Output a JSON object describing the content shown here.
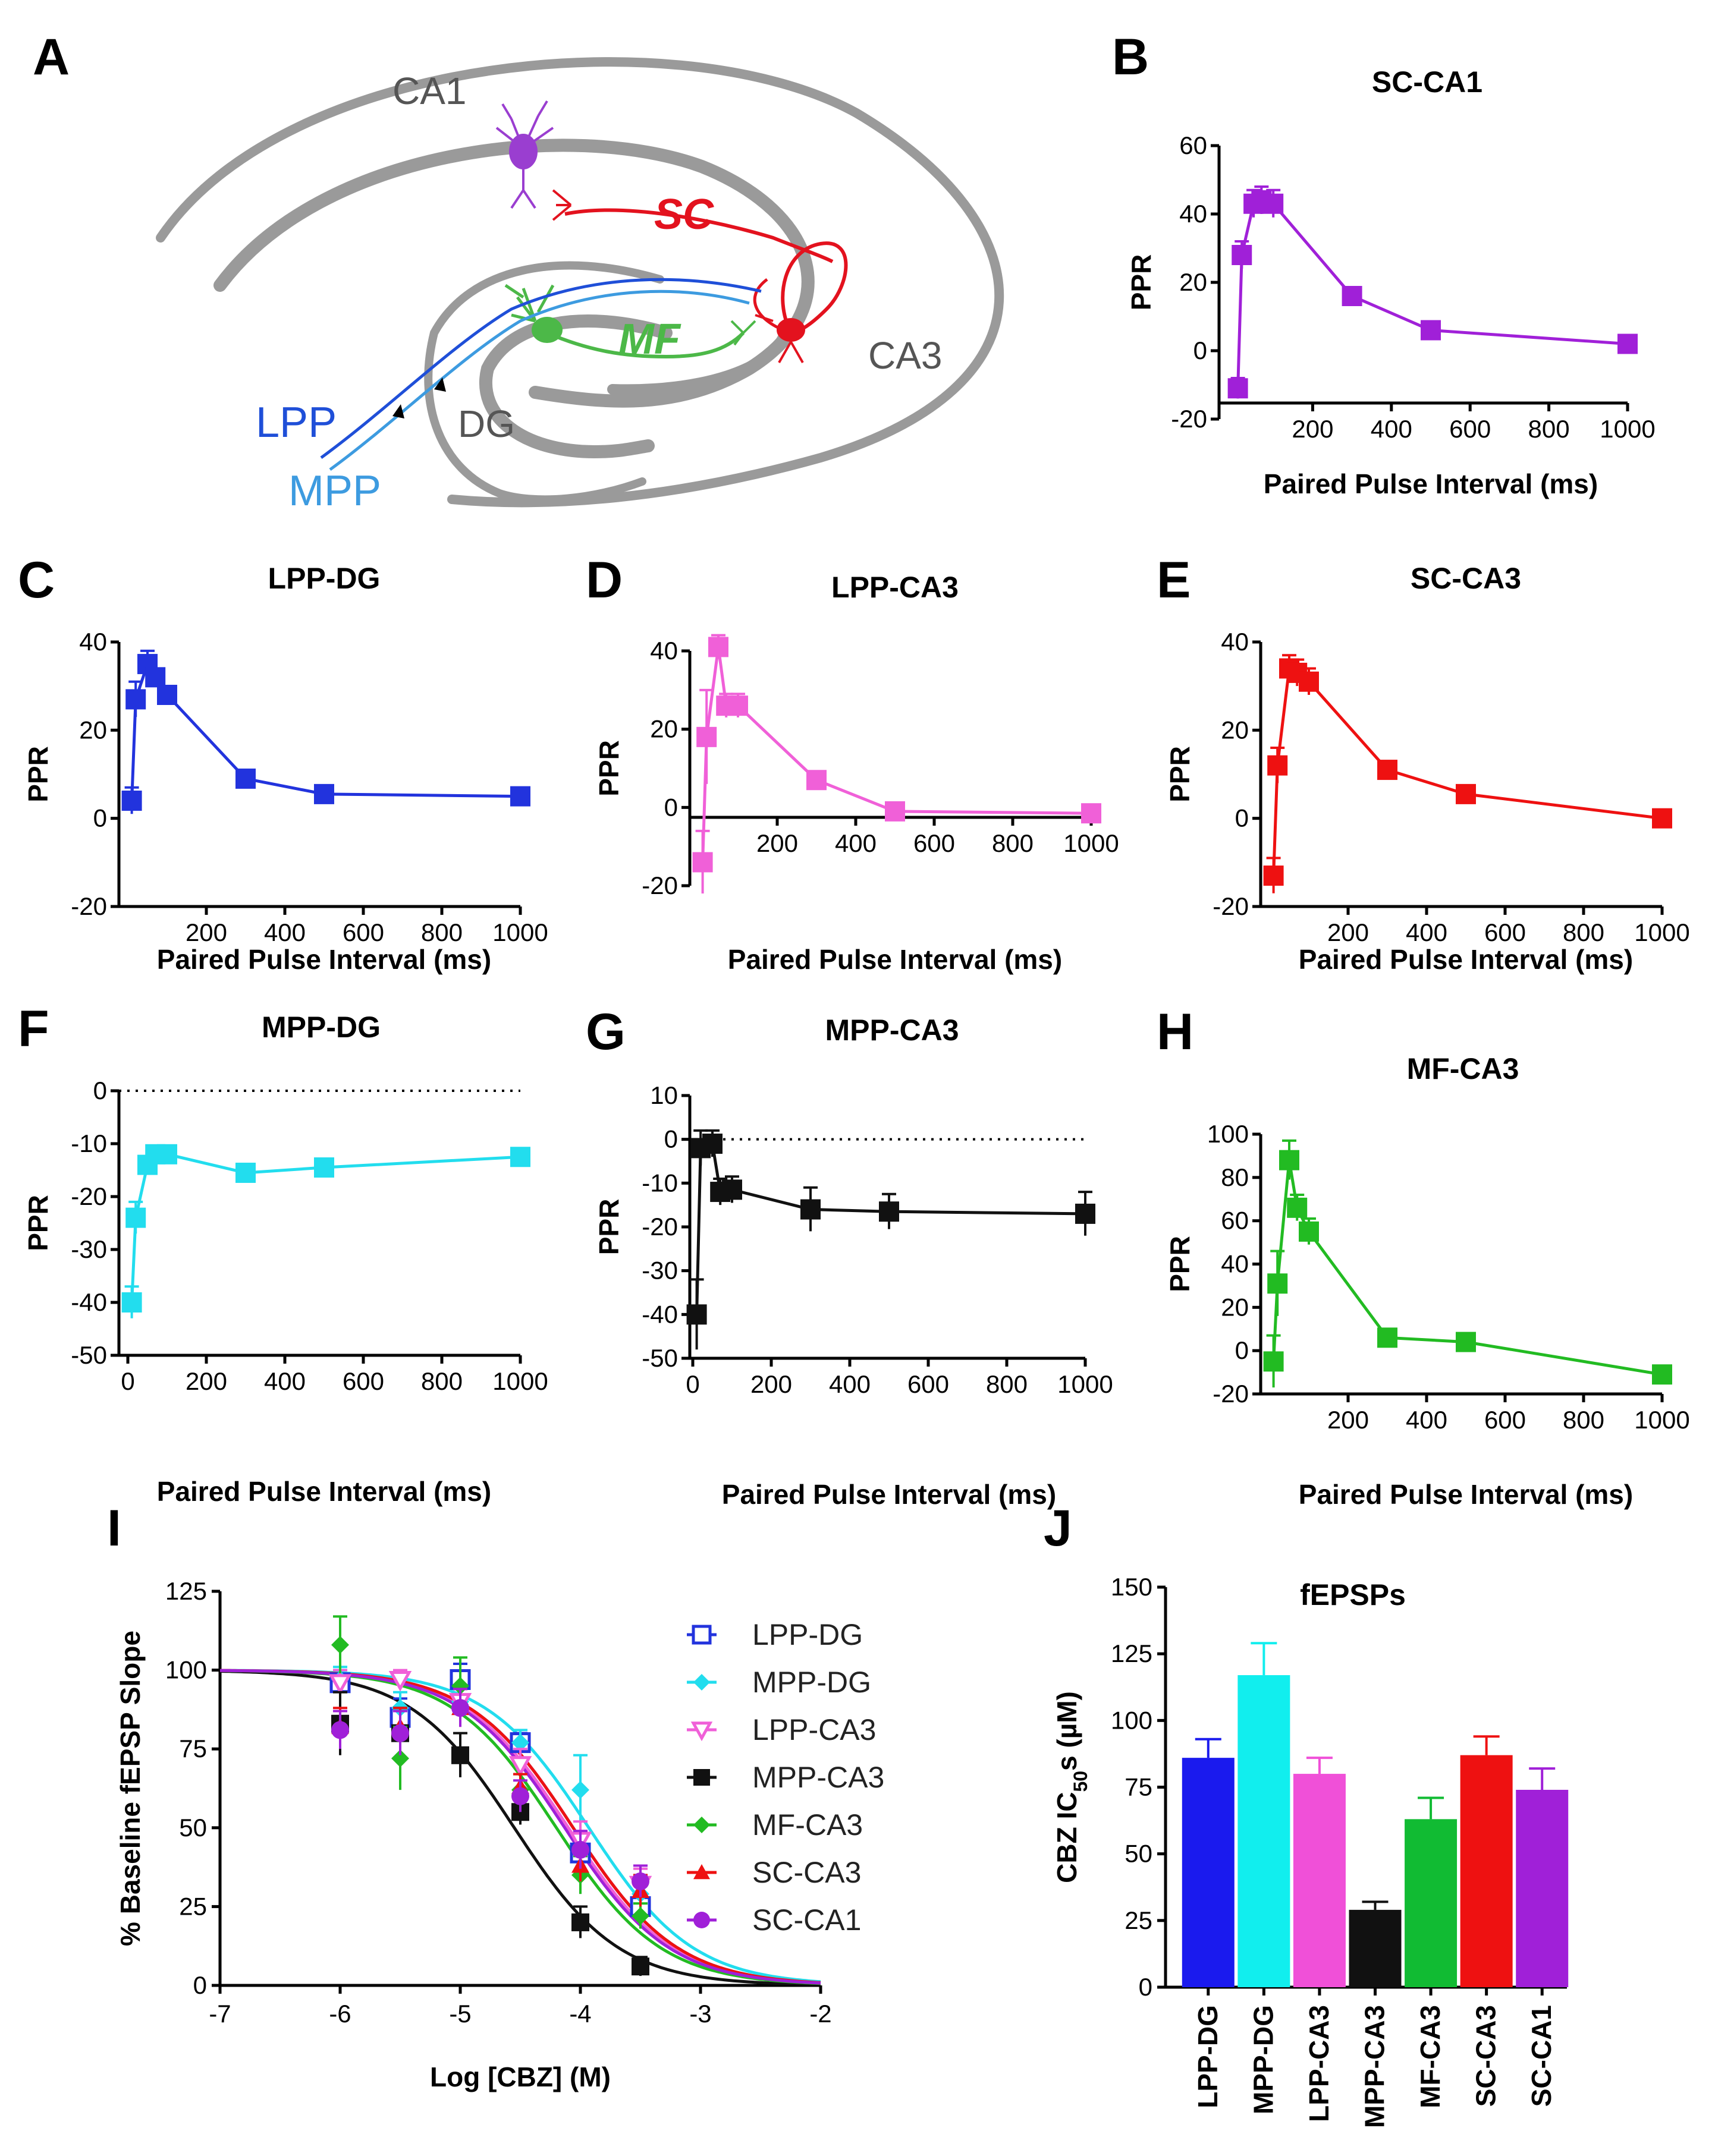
{
  "panel_a": {
    "label": "A",
    "regions": {
      "ca1": "CA1",
      "ca3": "CA3",
      "dg": "DG"
    },
    "pathways": {
      "sc": "SC",
      "mf": "MF",
      "lpp": "LPP",
      "mpp": "MPP"
    },
    "colors": {
      "lpp": "#1f4fd8",
      "mpp": "#3d9be0",
      "sc": "#e3121e",
      "mf": "#4cb848",
      "ca1_cell": "#9a3ed0",
      "region": "#9a9a9a"
    }
  },
  "chart_data": [
    {
      "id": "B",
      "label": "B",
      "type": "line",
      "title": "SC-CA1",
      "xlabel": "Paired Pulse Interval (ms)",
      "ylabel": "PPR",
      "color": "#a020d8",
      "xlim": [
        0,
        1000
      ],
      "ylim": [
        -20,
        60
      ],
      "xticks": [
        200,
        400,
        600,
        800,
        1000
      ],
      "yticks": [
        -20,
        0,
        20,
        40,
        60
      ],
      "x": [
        10,
        20,
        50,
        70,
        100,
        300,
        500,
        1000
      ],
      "y": [
        -11,
        28,
        43,
        44,
        43,
        16,
        6,
        2
      ],
      "err": [
        3,
        4,
        4,
        4,
        4,
        2,
        2,
        2
      ],
      "zero_line": false
    },
    {
      "id": "C",
      "label": "C",
      "type": "line",
      "title": "LPP-DG",
      "xlabel": "Paired Pulse Interval (ms)",
      "ylabel": "PPR",
      "color": "#2233dd",
      "xlim": [
        0,
        1000
      ],
      "ylim": [
        -20,
        40
      ],
      "xticks": [
        200,
        400,
        600,
        800,
        1000
      ],
      "yticks": [
        -20,
        0,
        20,
        40
      ],
      "x": [
        10,
        20,
        50,
        70,
        100,
        300,
        500,
        1000
      ],
      "y": [
        4,
        27,
        35,
        32,
        28,
        9,
        5.5,
        5
      ],
      "err": [
        3,
        4,
        3,
        2,
        2,
        1,
        1,
        1
      ],
      "zero_line": false
    },
    {
      "id": "D",
      "label": "D",
      "type": "line",
      "title": "LPP-CA3",
      "xlabel": "Paired Pulse Interval (ms)",
      "ylabel": "PPR",
      "color": "#f060d8",
      "xlim": [
        0,
        1000
      ],
      "ylim": [
        -20,
        40
      ],
      "xticks": [
        200,
        400,
        600,
        800,
        1000
      ],
      "yticks": [
        -20,
        0,
        20,
        40
      ],
      "x": [
        10,
        20,
        50,
        70,
        100,
        300,
        500,
        1000
      ],
      "y": [
        -14,
        18,
        41,
        26,
        26,
        7,
        -1,
        -1.5
      ],
      "err": [
        8,
        12,
        3,
        3,
        3,
        2,
        1,
        2
      ],
      "zero_line": false
    },
    {
      "id": "E",
      "label": "E",
      "type": "line",
      "title": "SC-CA3",
      "xlabel": "Paired Pulse Interval (ms)",
      "ylabel": "PPR",
      "color": "#ee1111",
      "xlim": [
        0,
        1000
      ],
      "ylim": [
        -20,
        40
      ],
      "xticks": [
        200,
        400,
        600,
        800,
        1000
      ],
      "yticks": [
        -20,
        0,
        20,
        40
      ],
      "x": [
        10,
        20,
        50,
        70,
        100,
        300,
        500,
        1000
      ],
      "y": [
        -13,
        12,
        34,
        33,
        31,
        11,
        5.5,
        0
      ],
      "err": [
        4,
        4,
        3,
        3,
        3,
        1,
        1,
        1
      ],
      "zero_line": false
    },
    {
      "id": "F",
      "label": "F",
      "type": "line",
      "title": "MPP-DG",
      "xlabel": "Paired Pulse Interval (ms)",
      "ylabel": "PPR",
      "color": "#22ddee",
      "xlim": [
        0,
        1000
      ],
      "ylim": [
        -50,
        0
      ],
      "xticks": [
        0,
        200,
        400,
        600,
        800,
        1000
      ],
      "yticks": [
        -50,
        -40,
        -30,
        -20,
        -10,
        0
      ],
      "x": [
        10,
        20,
        50,
        70,
        100,
        300,
        500,
        1000
      ],
      "y": [
        -40,
        -24,
        -14,
        -12,
        -12,
        -15.5,
        -14.5,
        -12.5
      ],
      "err": [
        3,
        3,
        1,
        1,
        1,
        1,
        1,
        1
      ],
      "zero_line": true
    },
    {
      "id": "G",
      "label": "G",
      "type": "line",
      "title": "MPP-CA3",
      "xlabel": "Paired Pulse Interval (ms)",
      "ylabel": "PPR",
      "color": "#111111",
      "xlim": [
        0,
        1000
      ],
      "ylim": [
        -50,
        10
      ],
      "xticks": [
        0,
        200,
        400,
        600,
        800,
        1000
      ],
      "yticks": [
        -50,
        -40,
        -30,
        -20,
        -10,
        0,
        10
      ],
      "x": [
        10,
        20,
        50,
        70,
        100,
        300,
        500,
        1000
      ],
      "y": [
        -40,
        -2,
        -1,
        -12,
        -11.5,
        -16,
        -16.5,
        -17
      ],
      "err": [
        8,
        4,
        3,
        3,
        3,
        5,
        4,
        5
      ],
      "zero_line": true
    },
    {
      "id": "H",
      "label": "H",
      "type": "line",
      "title": "MF-CA3",
      "xlabel": "Paired Pulse Interval (ms)",
      "ylabel": "PPR",
      "color": "#22bb22",
      "xlim": [
        0,
        1000
      ],
      "ylim": [
        -20,
        100
      ],
      "xticks": [
        200,
        400,
        600,
        800,
        1000
      ],
      "yticks": [
        -20,
        0,
        20,
        40,
        60,
        80,
        100
      ],
      "x": [
        10,
        20,
        50,
        70,
        100,
        300,
        500,
        1000
      ],
      "y": [
        -5,
        31,
        88,
        66,
        55,
        6,
        4,
        -11
      ],
      "err": [
        12,
        15,
        9,
        6,
        6,
        4,
        4,
        2
      ],
      "zero_line": false
    },
    {
      "id": "I",
      "label": "I",
      "type": "scatter",
      "title": "",
      "xlabel": "Log [CBZ] (M)",
      "ylabel": "% Baseline fEPSP Slope",
      "xlim": [
        -7,
        -2
      ],
      "ylim": [
        0,
        125
      ],
      "xticks": [
        -7,
        -6,
        -5,
        -4,
        -3,
        -2
      ],
      "yticks": [
        0,
        25,
        50,
        75,
        100,
        125
      ],
      "x": [
        -6,
        -5.5,
        -5,
        -4.5,
        -4,
        -3.5
      ],
      "series": [
        {
          "name": "LPP-DG",
          "color": "#2233dd",
          "marker": "open-square",
          "logIC50": -4.06,
          "values": [
            96,
            85,
            97,
            77,
            42,
            25
          ],
          "err": [
            4,
            6,
            5,
            3,
            6,
            4
          ]
        },
        {
          "name": "MPP-DG",
          "color": "#22ddee",
          "marker": "diamond",
          "logIC50": -3.93,
          "values": [
            97,
            88,
            90,
            77,
            62,
            29
          ],
          "err": [
            4,
            5,
            5,
            4,
            11,
            6
          ]
        },
        {
          "name": "LPP-CA3",
          "color": "#f060d8",
          "marker": "open-triangle-down",
          "logIC50": -4.1,
          "values": [
            96,
            97,
            90,
            70,
            46,
            32
          ],
          "err": [
            4,
            3,
            5,
            5,
            6,
            5
          ]
        },
        {
          "name": "MPP-CA3",
          "color": "#111111",
          "marker": "square",
          "logIC50": -4.55,
          "values": [
            83,
            80,
            73,
            55,
            20,
            6
          ],
          "err": [
            10,
            8,
            7,
            4,
            5,
            3
          ]
        },
        {
          "name": "MF-CA3",
          "color": "#22bb22",
          "marker": "diamond",
          "logIC50": -4.2,
          "values": [
            108,
            72,
            95,
            62,
            35,
            22
          ],
          "err": [
            9,
            10,
            9,
            5,
            6,
            4
          ]
        },
        {
          "name": "SC-CA3",
          "color": "#ee1111",
          "marker": "triangle",
          "logIC50": -4.06,
          "values": [
            82,
            82,
            88,
            63,
            38,
            30
          ],
          "err": [
            6,
            6,
            6,
            4,
            5,
            5
          ]
        },
        {
          "name": "SC-CA1",
          "color": "#a020d8",
          "marker": "circle",
          "logIC50": -4.13,
          "values": [
            81,
            80,
            88,
            60,
            43,
            33
          ],
          "err": [
            6,
            7,
            6,
            5,
            6,
            5
          ]
        }
      ]
    },
    {
      "id": "J",
      "label": "J",
      "type": "bar",
      "title": "fEPSPs",
      "ylabel": "CBZ IC",
      "ylabel_sub": "50",
      "ylabel_tail": "s (µM)",
      "ylim": [
        0,
        150
      ],
      "yticks": [
        0,
        25,
        50,
        75,
        100,
        125,
        150
      ],
      "categories": [
        "LPP-DG",
        "MPP-DG",
        "LPP-CA3",
        "MPP-CA3",
        "MF-CA3",
        "SC-CA3",
        "SC-CA1"
      ],
      "values": [
        86,
        117,
        80,
        29,
        63,
        87,
        74
      ],
      "err": [
        7,
        12,
        6,
        3,
        8,
        7,
        8
      ],
      "colors": [
        "#1a1aee",
        "#11eeee",
        "#f050d8",
        "#111111",
        "#11bb33",
        "#ee1111",
        "#a020d8"
      ]
    }
  ]
}
